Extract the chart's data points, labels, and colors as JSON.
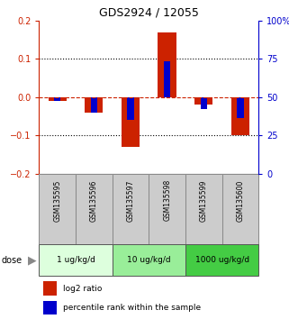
{
  "title": "GDS2924 / 12055",
  "samples": [
    "GSM135595",
    "GSM135596",
    "GSM135597",
    "GSM135598",
    "GSM135599",
    "GSM135600"
  ],
  "log2_ratio": [
    -0.01,
    -0.04,
    -0.13,
    0.17,
    -0.02,
    -0.1
  ],
  "percentile_rank_normalized": [
    -0.01,
    -0.04,
    -0.06,
    0.095,
    -0.03,
    -0.055
  ],
  "ylim_left": [
    -0.2,
    0.2
  ],
  "yticks_left": [
    -0.2,
    -0.1,
    0,
    0.1,
    0.2
  ],
  "ylim_right": [
    0,
    100
  ],
  "yticks_right": [
    0,
    25,
    50,
    75,
    100
  ],
  "ytick_labels_right": [
    "0",
    "25",
    "50",
    "75",
    "100%"
  ],
  "red_color": "#cc2200",
  "blue_color": "#0000cc",
  "dose_groups": [
    {
      "label": "1 ug/kg/d",
      "samples": [
        0,
        1
      ],
      "color": "#ddffdd"
    },
    {
      "label": "10 ug/kg/d",
      "samples": [
        2,
        3
      ],
      "color": "#99ee99"
    },
    {
      "label": "1000 ug/kg/d",
      "samples": [
        4,
        5
      ],
      "color": "#44cc44"
    }
  ],
  "legend_red_label": "log2 ratio",
  "legend_blue_label": "percentile rank within the sample",
  "sample_box_color": "#cccccc"
}
